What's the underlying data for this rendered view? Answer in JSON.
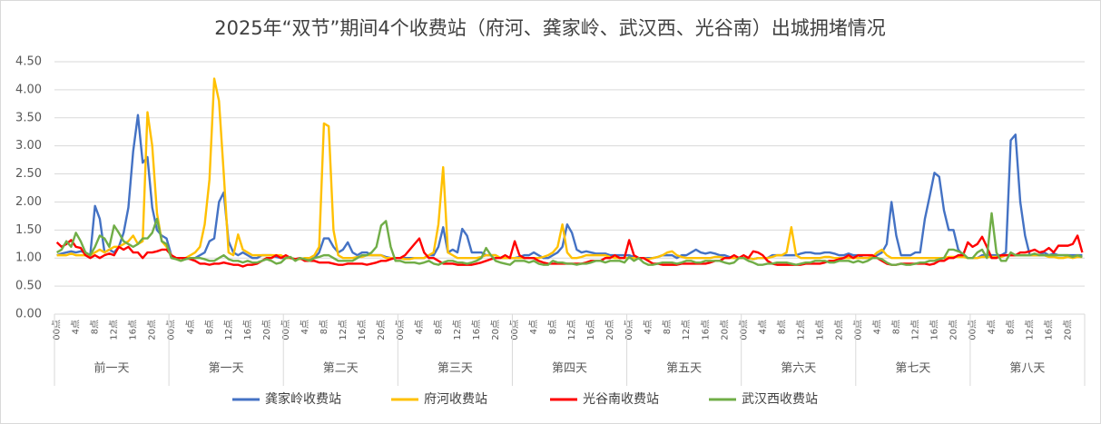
{
  "chart_data": {
    "type": "line",
    "title": "2025年“双节”期间4个收费站（府河、龚家岭、武汉西、光谷南）出城拥堵情况",
    "category_groups": [
      "前一天",
      "第一天",
      "第二天",
      "第三天",
      "第四天",
      "第五天",
      "第六天",
      "第七天",
      "第八天"
    ],
    "categories": [
      "00点",
      null,
      null,
      null,
      "4点",
      null,
      null,
      null,
      "8点",
      null,
      null,
      null,
      "12点",
      null,
      null,
      null,
      "16点",
      null,
      null,
      null,
      "20点",
      null,
      null,
      null,
      "00点",
      null,
      null,
      null,
      "4点",
      null,
      null,
      null,
      "8点",
      null,
      null,
      null,
      "12点",
      null,
      null,
      null,
      "16点",
      null,
      null,
      null,
      "20点",
      null,
      null,
      null,
      "00点",
      null,
      null,
      null,
      "4点",
      null,
      null,
      null,
      "8点",
      null,
      null,
      null,
      "12点",
      null,
      null,
      null,
      "16点",
      null,
      null,
      null,
      "20点",
      null,
      null,
      null,
      "00点",
      null,
      null,
      null,
      "4点",
      null,
      null,
      null,
      "8点",
      null,
      null,
      null,
      "12点",
      null,
      null,
      null,
      "16点",
      null,
      null,
      null,
      "20点",
      null,
      null,
      null,
      "00点",
      null,
      null,
      null,
      "4点",
      null,
      null,
      null,
      "8点",
      null,
      null,
      null,
      "12点",
      null,
      null,
      null,
      "16点",
      null,
      null,
      null,
      "20点",
      null,
      null,
      null,
      "00点",
      null,
      null,
      null,
      "4点",
      null,
      null,
      null,
      "8点",
      null,
      null,
      null,
      "12点",
      null,
      null,
      null,
      "16点",
      null,
      null,
      null,
      "20点",
      null,
      null,
      null,
      "00点",
      null,
      null,
      null,
      "4点",
      null,
      null,
      null,
      "8点",
      null,
      null,
      null,
      "12点",
      null,
      null,
      null,
      "16点",
      null,
      null,
      null,
      "20点",
      null,
      null,
      null,
      "00点",
      null,
      null,
      null,
      "4点",
      null,
      null,
      null,
      "8点",
      null,
      null,
      null,
      "12点",
      null,
      null,
      null,
      "16点",
      null,
      null,
      null,
      "20点",
      null,
      null,
      null,
      "00点",
      null,
      null,
      null,
      "4点",
      null,
      null,
      null,
      "8点",
      null,
      null,
      null,
      "12点",
      null,
      null,
      null,
      "16点",
      null,
      null,
      null,
      "20点",
      null,
      null,
      null
    ],
    "ylim": [
      0,
      4.5
    ],
    "yticks": [
      {
        "value": 0,
        "label": "0.00"
      },
      {
        "value": 0.5,
        "label": "0.50"
      },
      {
        "value": 1,
        "label": "1.00"
      },
      {
        "value": 1.5,
        "label": "1.50"
      },
      {
        "value": 2,
        "label": "2.00"
      },
      {
        "value": 2.5,
        "label": "2.50"
      },
      {
        "value": 3,
        "label": "3.00"
      },
      {
        "value": 3.5,
        "label": "3.50"
      },
      {
        "value": 4,
        "label": "4.00"
      },
      {
        "value": 4.5,
        "label": "4.50"
      }
    ],
    "grid": true,
    "legend": "bottom",
    "series": [
      {
        "name": "龚家岭收费站",
        "color": "#4472c4",
        "values": [
          1.05,
          1.08,
          1.1,
          1.12,
          1.1,
          1.12,
          1.1,
          1.05,
          1.93,
          1.7,
          1.1,
          1.15,
          1.1,
          1.2,
          1.45,
          1.9,
          2.9,
          3.55,
          2.7,
          2.8,
          1.9,
          1.5,
          1.4,
          1.35,
          1.05,
          1.0,
          1.0,
          0.98,
          1.0,
          1.0,
          1.05,
          1.1,
          1.3,
          1.35,
          2.0,
          2.17,
          1.3,
          1.1,
          1.05,
          1.1,
          1.05,
          1.0,
          1.0,
          1.05,
          1.05,
          1.05,
          1.02,
          1.0,
          1.0,
          1.0,
          0.98,
          1.0,
          0.95,
          0.98,
          1.0,
          1.1,
          1.35,
          1.35,
          1.2,
          1.1,
          1.15,
          1.28,
          1.1,
          1.05,
          1.1,
          1.1,
          1.05,
          1.05,
          1.05,
          1.02,
          1.0,
          1.0,
          1.0,
          1.0,
          1.0,
          1.0,
          1.0,
          1.0,
          1.05,
          1.05,
          1.2,
          1.55,
          1.1,
          1.15,
          1.1,
          1.52,
          1.4,
          1.1,
          1.1,
          1.1,
          1.05,
          1.05,
          1.05,
          1.0,
          1.0,
          1.0,
          1.0,
          1.02,
          1.05,
          1.05,
          1.1,
          1.05,
          1.0,
          1.0,
          1.05,
          1.1,
          1.2,
          1.6,
          1.45,
          1.15,
          1.1,
          1.12,
          1.1,
          1.08,
          1.08,
          1.08,
          1.05,
          1.05,
          1.05,
          1.05,
          1.05,
          1.02,
          1.0,
          1.0,
          1.0,
          1.0,
          1.02,
          1.05,
          1.05,
          1.05,
          1.0,
          1.05,
          1.05,
          1.1,
          1.15,
          1.1,
          1.08,
          1.1,
          1.08,
          1.05,
          1.05,
          1.02,
          1.0,
          1.0,
          1.0,
          1.0,
          0.98,
          1.0,
          1.0,
          1.0,
          1.05,
          1.05,
          1.05,
          1.05,
          1.05,
          1.05,
          1.08,
          1.1,
          1.1,
          1.08,
          1.08,
          1.1,
          1.1,
          1.08,
          1.05,
          1.05,
          1.08,
          1.05,
          1.05,
          1.0,
          1.0,
          1.0,
          1.05,
          1.1,
          1.25,
          2.0,
          1.4,
          1.05,
          1.05,
          1.05,
          1.1,
          1.1,
          1.7,
          2.1,
          2.52,
          2.45,
          1.85,
          1.5,
          1.5,
          1.15,
          1.05,
          1.0,
          1.0,
          1.0,
          1.05,
          1.05,
          1.05,
          1.05,
          1.05,
          1.1,
          3.1,
          3.2,
          2.0,
          1.4,
          1.05,
          1.05,
          1.05,
          1.1,
          1.05,
          1.08,
          1.05,
          1.05,
          1.05,
          1.05,
          1.05,
          1.05
        ]
      },
      {
        "name": "府河收费站",
        "color": "#ffc000",
        "values": [
          1.05,
          1.05,
          1.05,
          1.08,
          1.05,
          1.05,
          1.05,
          1.05,
          1.1,
          1.15,
          1.1,
          1.15,
          1.2,
          1.2,
          1.25,
          1.3,
          1.4,
          1.25,
          1.3,
          3.6,
          3.0,
          1.8,
          1.3,
          1.2,
          1.05,
          1.0,
          1.0,
          1.0,
          1.05,
          1.1,
          1.2,
          1.6,
          2.4,
          4.2,
          3.8,
          2.5,
          1.1,
          1.05,
          1.42,
          1.15,
          1.1,
          1.05,
          1.05,
          1.05,
          1.05,
          1.05,
          1.05,
          1.05,
          1.0,
          1.0,
          0.98,
          0.98,
          1.0,
          1.0,
          1.05,
          1.2,
          3.4,
          3.35,
          1.5,
          1.05,
          1.0,
          1.0,
          1.0,
          1.02,
          1.02,
          1.05,
          1.05,
          1.05,
          1.05,
          1.0,
          1.0,
          1.0,
          1.0,
          0.98,
          0.98,
          1.0,
          1.0,
          1.0,
          1.05,
          1.1,
          1.6,
          2.62,
          1.1,
          1.05,
          1.0,
          1.0,
          1.0,
          1.0,
          1.0,
          1.02,
          1.05,
          1.05,
          1.05,
          1.0,
          1.0,
          1.0,
          1.0,
          1.0,
          1.0,
          1.0,
          1.0,
          1.0,
          1.02,
          1.05,
          1.1,
          1.2,
          1.6,
          1.1,
          1.0,
          1.0,
          1.02,
          1.05,
          1.05,
          1.05,
          1.05,
          1.05,
          1.02,
          1.0,
          1.0,
          1.0,
          1.0,
          1.0,
          1.0,
          1.0,
          0.98,
          1.0,
          1.02,
          1.05,
          1.1,
          1.12,
          1.05,
          1.02,
          1.0,
          1.0,
          1.0,
          1.0,
          1.0,
          1.0,
          1.02,
          1.02,
          1.0,
          1.0,
          1.0,
          1.0,
          1.0,
          1.0,
          0.98,
          1.0,
          1.0,
          1.0,
          1.02,
          1.05,
          1.05,
          1.1,
          1.55,
          1.05,
          1.0,
          1.0,
          1.0,
          1.0,
          1.0,
          1.02,
          1.02,
          1.0,
          1.0,
          1.0,
          1.0,
          1.0,
          1.0,
          1.0,
          1.0,
          1.02,
          1.1,
          1.15,
          1.05,
          1.0,
          1.0,
          1.0,
          1.0,
          1.0,
          1.0,
          1.0,
          1.0,
          1.0,
          1.0,
          1.0,
          1.0,
          1.02,
          1.02,
          1.02,
          1.02,
          1.0,
          1.0,
          1.0,
          1.02,
          1.02,
          1.02,
          1.02,
          1.02,
          1.05,
          1.05,
          1.05,
          1.05,
          1.05,
          1.05,
          1.05,
          1.05,
          1.05,
          1.02,
          1.02,
          1.0,
          1.0,
          1.02,
          1.0,
          1.02,
          1.02
        ]
      },
      {
        "name": "光谷南收费站",
        "color": "#ff0000",
        "values": [
          1.28,
          1.2,
          1.25,
          1.32,
          1.2,
          1.18,
          1.05,
          1.0,
          1.05,
          1.0,
          1.05,
          1.08,
          1.05,
          1.2,
          1.15,
          1.2,
          1.1,
          1.1,
          1.0,
          1.1,
          1.1,
          1.12,
          1.15,
          1.15,
          1.05,
          1.0,
          1.0,
          1.0,
          0.98,
          0.95,
          0.9,
          0.9,
          0.88,
          0.9,
          0.9,
          0.92,
          0.9,
          0.88,
          0.88,
          0.85,
          0.88,
          0.88,
          0.9,
          0.95,
          1.0,
          1.0,
          1.05,
          1.0,
          1.05,
          1.0,
          0.98,
          1.0,
          0.95,
          0.95,
          0.95,
          0.92,
          0.92,
          0.92,
          0.9,
          0.88,
          0.88,
          0.9,
          0.9,
          0.9,
          0.9,
          0.88,
          0.9,
          0.92,
          0.95,
          0.95,
          0.98,
          1.0,
          1.0,
          1.05,
          1.15,
          1.25,
          1.35,
          1.1,
          1.0,
          1.0,
          0.95,
          0.9,
          0.9,
          0.9,
          0.88,
          0.88,
          0.88,
          0.88,
          0.9,
          0.92,
          0.95,
          0.98,
          1.0,
          1.0,
          1.05,
          1.0,
          1.3,
          1.05,
          1.0,
          1.0,
          1.0,
          0.95,
          0.92,
          0.9,
          0.9,
          0.9,
          0.9,
          0.9,
          0.9,
          0.9,
          0.9,
          0.92,
          0.95,
          0.95,
          0.95,
          1.0,
          1.0,
          1.05,
          1.0,
          1.0,
          1.32,
          1.05,
          1.0,
          1.0,
          0.95,
          0.9,
          0.9,
          0.88,
          0.88,
          0.88,
          0.88,
          0.9,
          0.9,
          0.9,
          0.9,
          0.9,
          0.9,
          0.92,
          0.95,
          0.95,
          1.0,
          1.0,
          1.05,
          1.0,
          1.05,
          1.0,
          1.12,
          1.1,
          1.05,
          0.95,
          0.9,
          0.88,
          0.88,
          0.88,
          0.88,
          0.88,
          0.88,
          0.9,
          0.9,
          0.9,
          0.9,
          0.92,
          0.95,
          0.95,
          0.98,
          1.0,
          1.05,
          1.0,
          1.05,
          1.05,
          1.05,
          1.05,
          1.0,
          0.95,
          0.9,
          0.88,
          0.88,
          0.9,
          0.9,
          0.9,
          0.9,
          0.9,
          0.9,
          0.88,
          0.9,
          0.95,
          0.95,
          1.0,
          1.0,
          1.05,
          1.05,
          1.28,
          1.2,
          1.25,
          1.38,
          1.2,
          1.0,
          1.0,
          1.05,
          1.05,
          1.05,
          1.05,
          1.1,
          1.1,
          1.12,
          1.15,
          1.1,
          1.12,
          1.18,
          1.1,
          1.22,
          1.22,
          1.22,
          1.25,
          1.4,
          1.1
        ]
      },
      {
        "name": "武汉西收费站",
        "color": "#70ad47",
        "values": [
          1.1,
          1.15,
          1.3,
          1.2,
          1.45,
          1.3,
          1.1,
          1.05,
          1.2,
          1.4,
          1.35,
          1.2,
          1.58,
          1.45,
          1.3,
          1.25,
          1.2,
          1.25,
          1.35,
          1.35,
          1.45,
          1.7,
          1.3,
          1.25,
          1.0,
          0.98,
          0.95,
          0.98,
          1.0,
          1.0,
          1.0,
          0.98,
          0.95,
          0.95,
          1.0,
          1.05,
          0.98,
          0.95,
          0.95,
          0.92,
          0.95,
          0.92,
          0.92,
          0.95,
          0.98,
          0.95,
          0.9,
          0.92,
          1.0,
          1.02,
          0.95,
          1.0,
          0.98,
          0.95,
          1.0,
          1.02,
          1.05,
          1.05,
          1.0,
          0.95,
          0.95,
          0.95,
          0.95,
          1.0,
          1.05,
          1.05,
          1.1,
          1.2,
          1.58,
          1.66,
          1.2,
          0.95,
          0.95,
          0.92,
          0.92,
          0.92,
          0.9,
          0.92,
          0.95,
          0.9,
          0.88,
          0.92,
          0.95,
          0.95,
          0.92,
          0.92,
          0.9,
          0.92,
          0.95,
          1.0,
          1.18,
          1.05,
          0.95,
          0.92,
          0.9,
          0.88,
          0.95,
          0.95,
          0.95,
          0.92,
          0.95,
          0.9,
          0.88,
          0.88,
          0.95,
          0.92,
          0.92,
          0.9,
          0.9,
          0.88,
          0.9,
          0.9,
          0.92,
          0.95,
          0.95,
          0.92,
          0.95,
          0.95,
          0.95,
          0.92,
          1.02,
          0.95,
          1.0,
          0.92,
          0.88,
          0.88,
          0.9,
          0.92,
          0.92,
          0.92,
          0.9,
          0.92,
          0.95,
          0.95,
          0.92,
          0.92,
          0.95,
          0.95,
          0.95,
          0.95,
          0.92,
          0.9,
          0.92,
          1.0,
          1.0,
          0.95,
          0.92,
          0.88,
          0.88,
          0.9,
          0.9,
          0.92,
          0.92,
          0.92,
          0.9,
          0.88,
          0.9,
          0.92,
          0.92,
          0.95,
          0.95,
          0.95,
          0.92,
          0.92,
          0.95,
          0.95,
          0.95,
          0.92,
          0.95,
          0.92,
          0.95,
          1.0,
          1.0,
          0.98,
          0.92,
          0.88,
          0.88,
          0.9,
          0.88,
          0.88,
          0.9,
          0.92,
          0.92,
          0.95,
          0.95,
          0.98,
          1.0,
          1.15,
          1.15,
          1.12,
          1.08,
          1.0,
          1.0,
          1.1,
          1.15,
          1.0,
          1.8,
          1.1,
          0.95,
          0.95,
          1.1,
          1.05,
          1.05,
          1.05,
          1.05,
          1.08,
          1.05,
          1.05,
          1.05,
          1.05,
          1.05,
          1.05,
          1.05,
          1.02,
          1.05,
          1.02
        ]
      }
    ]
  }
}
